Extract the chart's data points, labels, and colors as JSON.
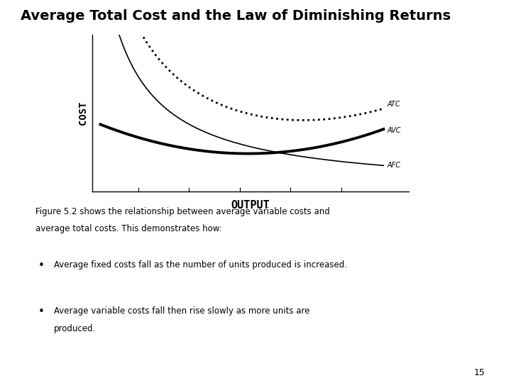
{
  "title": "Average Total Cost and the Law of Diminishing Returns",
  "title_fontsize": 14,
  "title_fontweight": "bold",
  "xlabel": "OUTPUT",
  "ylabel": "COST",
  "xlabel_fontsize": 11,
  "ylabel_fontsize": 10,
  "background_color": "#ffffff",
  "fig_text_line1": "Figure 5.2 shows the relationship between average variable costs and",
  "fig_text_line2": "average total costs. This demonstrates how:",
  "bullet1": "Average fixed costs fall as the number of units produced is increased.",
  "bullet2a": "Average variable costs fall then rise slowly as more units are",
  "bullet2b": "produced.",
  "page_number": "15",
  "x_ticks_count": 5
}
